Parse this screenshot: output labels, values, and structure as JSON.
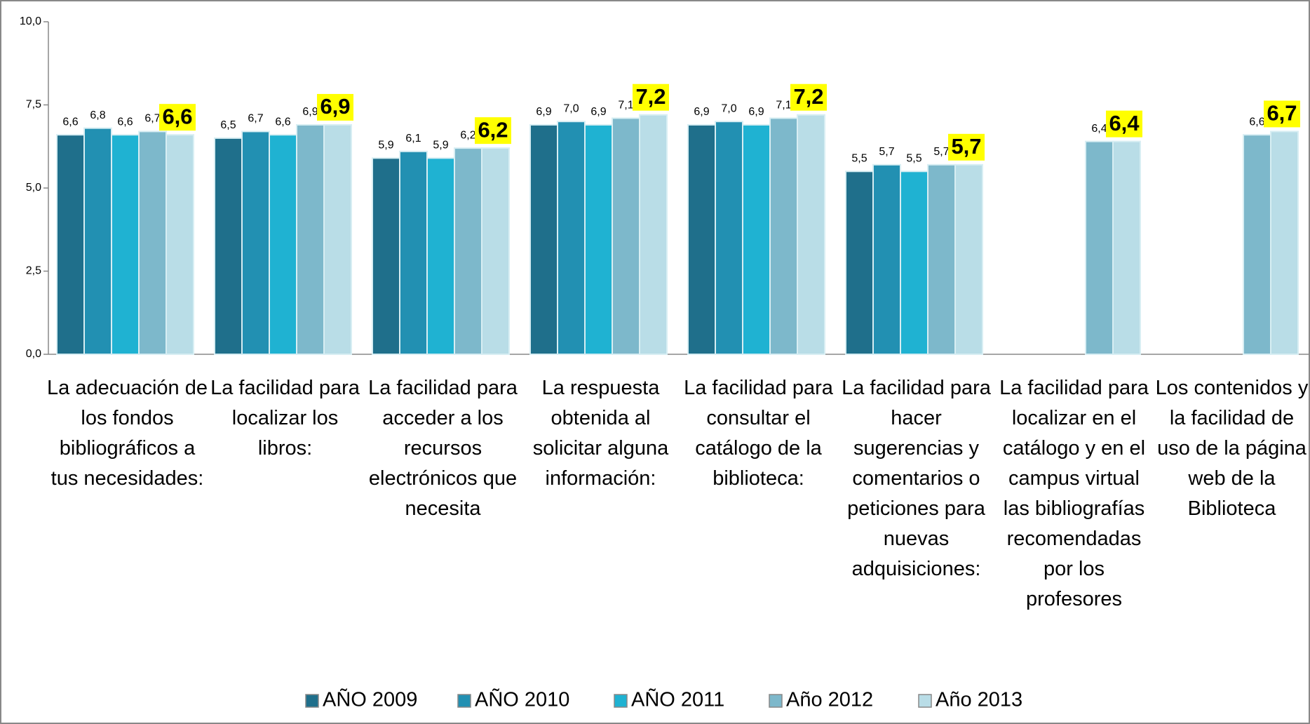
{
  "chart_data": {
    "type": "bar",
    "categories": [
      "La adecuación de los fondos bibliográficos a tus necesidades:",
      "La facilidad para localizar los libros:",
      "La facilidad para acceder a los recursos electrónicos que necesita",
      "La respuesta obtenida al solicitar alguna información:",
      "La facilidad para consultar el catálogo de la biblioteca:",
      "La facilidad para hacer sugerencias y comentarios o peticiones para nuevas adquisiciones:",
      "La facilidad para localizar en el catálogo y en el campus virtual las bibliografías recomendadas por los profesores",
      "Los contenidos y la facilidad de uso de la página web de la Biblioteca"
    ],
    "series": [
      {
        "name": "AÑO 2009",
        "color": "#1f6f8b",
        "values": [
          6.6,
          6.5,
          5.9,
          6.9,
          6.9,
          5.5,
          null,
          null
        ],
        "value_labels": [
          "6,6",
          "6,5",
          "5,9",
          "6,9",
          "6,9",
          "5,5",
          null,
          null
        ]
      },
      {
        "name": "AÑO 2010",
        "color": "#2290b2",
        "values": [
          6.8,
          6.7,
          6.1,
          7.0,
          7.0,
          5.7,
          null,
          null
        ],
        "value_labels": [
          "6,8",
          "6,7",
          "6,1",
          "7,0",
          "7,0",
          "5,7",
          null,
          null
        ]
      },
      {
        "name": "AÑO 2011",
        "color": "#1fb2d2",
        "values": [
          6.6,
          6.6,
          5.9,
          6.9,
          6.9,
          5.5,
          null,
          null
        ],
        "value_labels": [
          "6,6",
          "6,6",
          "5,9",
          "6,9",
          "6,9",
          "5,5",
          null,
          null
        ]
      },
      {
        "name": "Año 2012",
        "color": "#7db8cb",
        "values": [
          6.7,
          6.9,
          6.2,
          7.1,
          7.1,
          5.7,
          6.4,
          6.6
        ],
        "value_labels": [
          "6,7",
          "6,9",
          "6,2",
          "7,1",
          "7,1",
          "5,7",
          "6,4",
          "6,6"
        ]
      },
      {
        "name": "Año 2013",
        "color": "#b9dde7",
        "values": [
          6.6,
          6.9,
          6.2,
          7.2,
          7.2,
          5.7,
          6.4,
          6.7
        ],
        "value_labels": [
          "6,6",
          "6,9",
          "6,2",
          "7,2",
          "7,2",
          "5,7",
          "6,4",
          "6,7"
        ],
        "highlight": "#ffff00"
      }
    ],
    "ylim": [
      0,
      10
    ],
    "yticks": [
      {
        "value": 0,
        "label": "0,0"
      },
      {
        "value": 2.5,
        "label": "2,5"
      },
      {
        "value": 5,
        "label": "5,0"
      },
      {
        "value": 7.5,
        "label": "7,5"
      },
      {
        "value": 10,
        "label": "10,0"
      }
    ],
    "legend": "bottom"
  }
}
